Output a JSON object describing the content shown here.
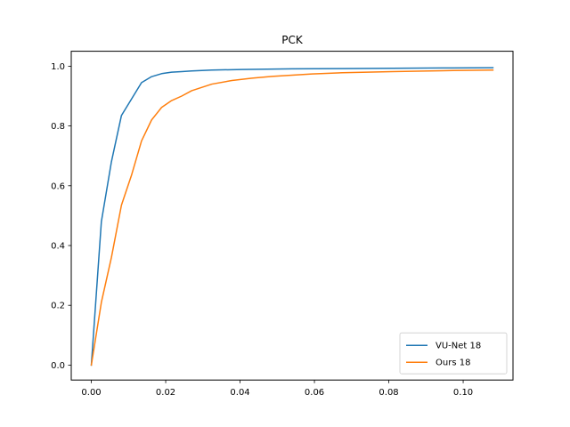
{
  "chart_data": {
    "type": "line",
    "title": "PCK",
    "xlabel": "",
    "ylabel": "",
    "xlim": [
      -0.0054,
      0.1134
    ],
    "ylim": [
      -0.05,
      1.05
    ],
    "x_ticks": [
      0.0,
      0.02,
      0.04,
      0.06,
      0.08,
      0.1
    ],
    "x_tick_labels": [
      "0.00",
      "0.02",
      "0.04",
      "0.06",
      "0.08",
      "0.10"
    ],
    "y_ticks": [
      0.0,
      0.2,
      0.4,
      0.6,
      0.8,
      1.0
    ],
    "y_tick_labels": [
      "0.0",
      "0.2",
      "0.4",
      "0.6",
      "0.8",
      "1.0"
    ],
    "grid": false,
    "legend_position": "lower-right",
    "series": [
      {
        "name": "VU-Net 18",
        "color": "#1f77b4",
        "x": [
          0.0,
          0.0027,
          0.0054,
          0.0081,
          0.0108,
          0.0135,
          0.0162,
          0.0189,
          0.0216,
          0.0243,
          0.027,
          0.0324,
          0.0405,
          0.054,
          0.0675,
          0.081,
          0.0945,
          0.108
        ],
        "y": [
          0.0,
          0.48,
          0.68,
          0.835,
          0.89,
          0.945,
          0.965,
          0.975,
          0.98,
          0.982,
          0.984,
          0.987,
          0.989,
          0.991,
          0.992,
          0.993,
          0.994,
          0.995
        ]
      },
      {
        "name": "Ours 18",
        "color": "#ff7f0e",
        "x": [
          0.0,
          0.0027,
          0.0054,
          0.0081,
          0.0108,
          0.0135,
          0.0162,
          0.0189,
          0.0216,
          0.0243,
          0.027,
          0.0324,
          0.0378,
          0.0432,
          0.0486,
          0.054,
          0.0594,
          0.0675,
          0.081,
          0.0945,
          0.108
        ],
        "y": [
          0.0,
          0.21,
          0.36,
          0.535,
          0.635,
          0.75,
          0.82,
          0.862,
          0.885,
          0.9,
          0.918,
          0.94,
          0.952,
          0.96,
          0.966,
          0.97,
          0.974,
          0.978,
          0.982,
          0.985,
          0.987
        ]
      }
    ]
  }
}
